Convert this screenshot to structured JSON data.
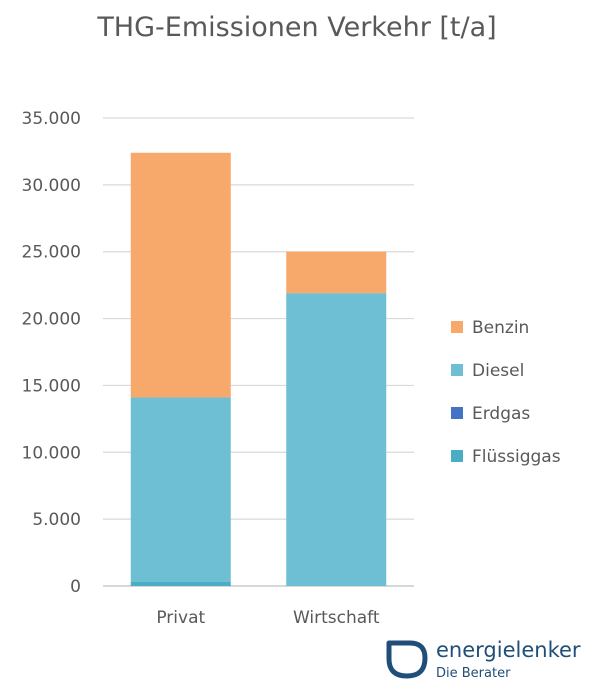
{
  "chart_data": {
    "type": "bar",
    "stacked": true,
    "title": "THG-Emissionen Verkehr [t/a]",
    "categories": [
      "Privat",
      "Wirtschaft"
    ],
    "series": [
      {
        "name": "Flüssiggas",
        "color": "#4BACC6",
        "values": [
          300,
          0
        ]
      },
      {
        "name": "Erdgas",
        "color": "#4472C4",
        "values": [
          0,
          0
        ]
      },
      {
        "name": "Diesel",
        "color": "#6FBFD4",
        "values": [
          13800,
          21900
        ]
      },
      {
        "name": "Benzin",
        "color": "#F7A96B",
        "values": [
          18300,
          3100
        ]
      }
    ],
    "legend_order": [
      "Benzin",
      "Diesel",
      "Erdgas",
      "Flüssiggas"
    ],
    "legend_position": "right",
    "ylim": [
      0,
      35000
    ],
    "yticks": [
      0,
      5000,
      10000,
      15000,
      20000,
      25000,
      30000,
      35000
    ],
    "ytick_labels": [
      "0",
      "5.000",
      "10.000",
      "15.000",
      "20.000",
      "25.000",
      "30.000",
      "35.000"
    ],
    "grid": true,
    "xlabel": "",
    "ylabel": ""
  },
  "logo": {
    "name": "energielenker",
    "tagline": "Die Berater",
    "color": "#1F4E79"
  }
}
